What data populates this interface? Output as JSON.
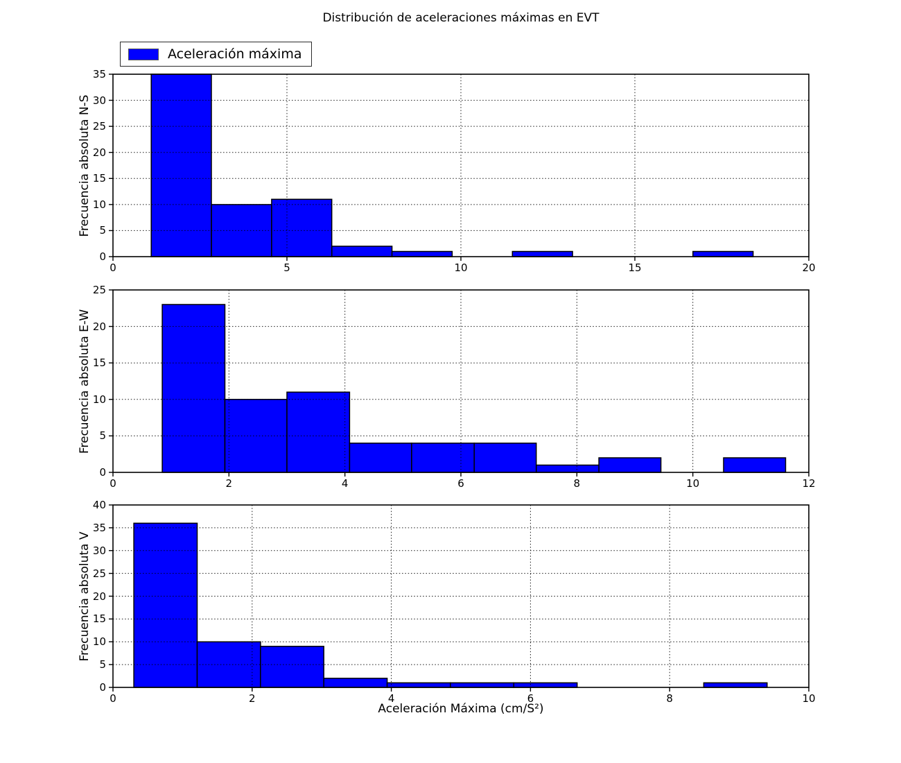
{
  "figure": {
    "title": "Distribución de aceleraciones máximas en EVT",
    "xlabel": "Aceleración Máxima (cm/S²)",
    "legend": {
      "label": "Aceleración máxima",
      "swatch_color": "#0000ff"
    },
    "colors": {
      "bar_fill": "#0000ff",
      "bar_edge": "#000000",
      "axis": "#000000",
      "grid": "#000000",
      "background": "#ffffff"
    }
  },
  "chart_data": [
    {
      "type": "bar",
      "subtype": "histogram",
      "name": "N-S",
      "ylabel": "Frecuencia absoluta N-S",
      "xlim": [
        0,
        20
      ],
      "ylim": [
        0,
        35
      ],
      "xticks": [
        0,
        5,
        10,
        15,
        20
      ],
      "yticks": [
        0,
        5,
        10,
        15,
        20,
        25,
        30,
        35
      ],
      "bin_edges": [
        1.1,
        2.83,
        4.56,
        6.29,
        8.02,
        9.75,
        11.48,
        13.21,
        14.94,
        16.67,
        18.4
      ],
      "counts": [
        35,
        10,
        11,
        2,
        1,
        0,
        1,
        0,
        0,
        1
      ],
      "grid": true,
      "legend_position": "upper-left-above-axes"
    },
    {
      "type": "bar",
      "subtype": "histogram",
      "name": "E-W",
      "ylabel": "Frecuencia absoluta E-W",
      "xlim": [
        0,
        12
      ],
      "ylim": [
        0,
        25
      ],
      "xticks": [
        0,
        2,
        4,
        6,
        8,
        10,
        12
      ],
      "yticks": [
        0,
        5,
        10,
        15,
        20,
        25
      ],
      "bin_edges": [
        0.85,
        1.93,
        3.0,
        4.08,
        5.15,
        6.23,
        7.3,
        8.38,
        9.45,
        10.53,
        11.6
      ],
      "counts": [
        23,
        10,
        11,
        4,
        4,
        4,
        1,
        2,
        0,
        2
      ],
      "grid": true
    },
    {
      "type": "bar",
      "subtype": "histogram",
      "name": "V",
      "ylabel": "Frecuencia absoluta V",
      "xlim": [
        0,
        10
      ],
      "ylim": [
        0,
        40
      ],
      "xticks": [
        0,
        2,
        4,
        6,
        8,
        10
      ],
      "yticks": [
        0,
        5,
        10,
        15,
        20,
        25,
        30,
        35,
        40
      ],
      "bin_edges": [
        0.3,
        1.21,
        2.12,
        3.03,
        3.94,
        4.85,
        5.76,
        6.67,
        7.58,
        8.49,
        9.4
      ],
      "counts": [
        36,
        10,
        9,
        2,
        1,
        1,
        1,
        0,
        0,
        1
      ],
      "grid": true
    }
  ]
}
